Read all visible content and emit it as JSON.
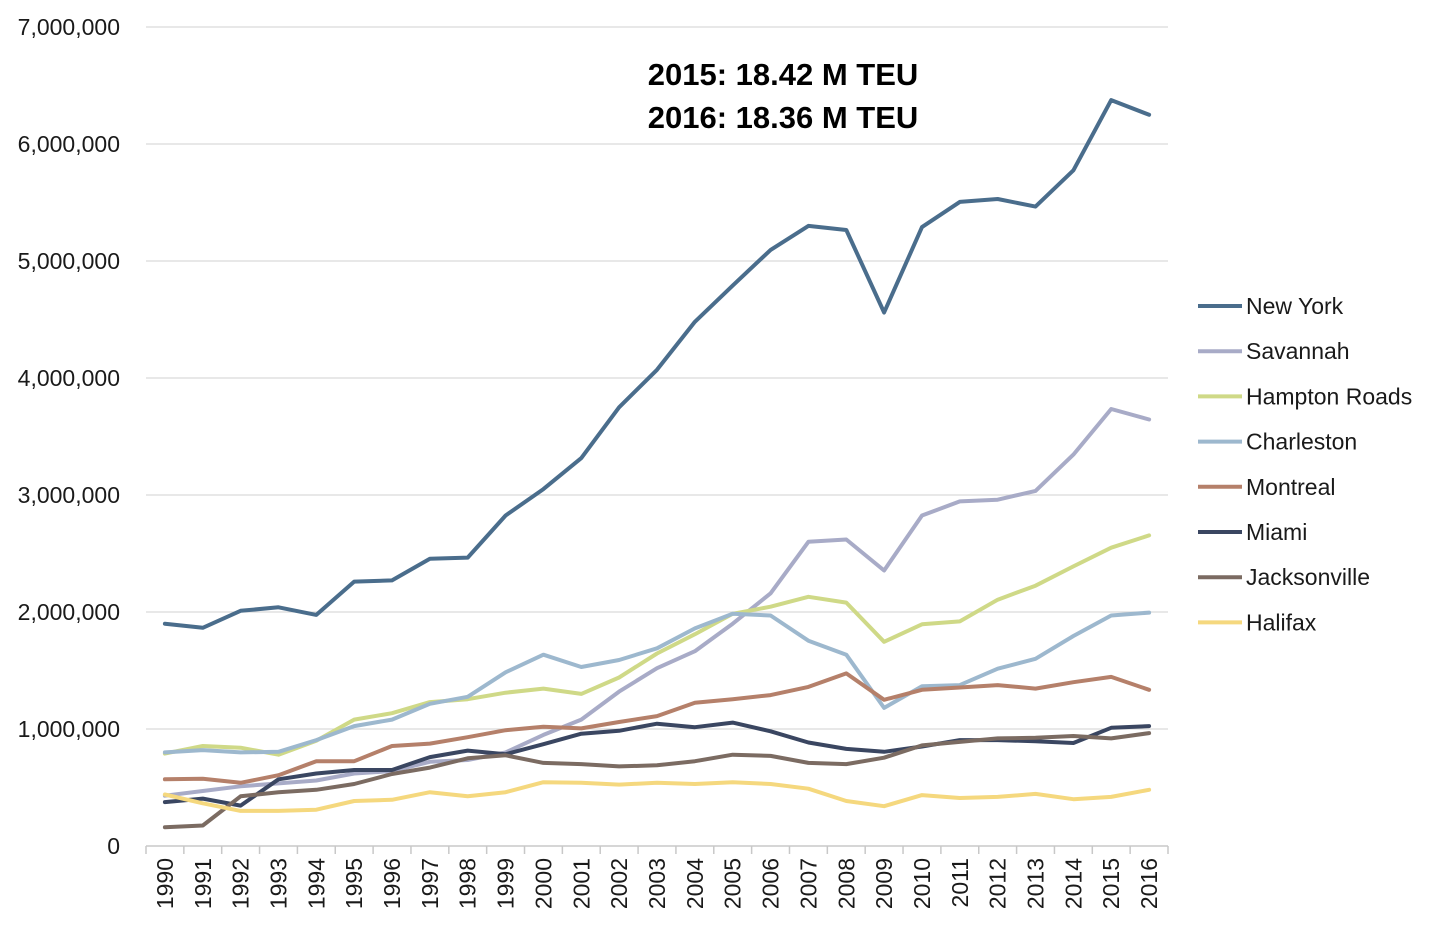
{
  "chart_data": {
    "type": "line",
    "title": "",
    "xlabel": "",
    "ylabel": "",
    "x": [
      "1990",
      "1991",
      "1992",
      "1993",
      "1994",
      "1995",
      "1996",
      "1997",
      "1998",
      "1999",
      "2000",
      "2001",
      "2002",
      "2003",
      "2004",
      "2005",
      "2006",
      "2007",
      "2008",
      "2009",
      "2010",
      "2011",
      "2012",
      "2013",
      "2014",
      "2015",
      "2016"
    ],
    "ylim": [
      0,
      7000000
    ],
    "y_ticks": [
      0,
      1000000,
      2000000,
      3000000,
      4000000,
      5000000,
      6000000,
      7000000
    ],
    "y_tick_labels": [
      "0",
      "1,000,000",
      "2,000,000",
      "3,000,000",
      "4,000,000",
      "5,000,000",
      "6,000,000",
      "7,000,000"
    ],
    "grid": "horizontal",
    "legend_position": "right",
    "annotations": [
      "2015: 18.42 M TEU",
      "2016: 18.36 M TEU"
    ],
    "series": [
      {
        "name": "New York",
        "color": "#4a6d8c",
        "values": [
          1900000,
          1865000,
          2010000,
          2040000,
          1975000,
          2260000,
          2270000,
          2455000,
          2465000,
          2825000,
          3050000,
          3315000,
          3750000,
          4070000,
          4480000,
          4790000,
          5095000,
          5300000,
          5265000,
          4560000,
          5290000,
          5505000,
          5530000,
          5465000,
          5775000,
          6375000,
          6250000
        ]
      },
      {
        "name": "Savannah",
        "color": "#a8abc7",
        "values": [
          430000,
          470000,
          510000,
          535000,
          560000,
          620000,
          640000,
          720000,
          735000,
          800000,
          950000,
          1080000,
          1320000,
          1520000,
          1665000,
          1900000,
          2160000,
          2600000,
          2620000,
          2355000,
          2825000,
          2945000,
          2960000,
          3035000,
          3345000,
          3735000,
          3645000
        ]
      },
      {
        "name": "Hampton Roads",
        "color": "#cfd987",
        "values": [
          790000,
          855000,
          840000,
          780000,
          900000,
          1080000,
          1135000,
          1230000,
          1255000,
          1310000,
          1345000,
          1300000,
          1440000,
          1645000,
          1810000,
          1985000,
          2045000,
          2130000,
          2080000,
          1745000,
          1895000,
          1920000,
          2105000,
          2225000,
          2390000,
          2550000,
          2655000
        ]
      },
      {
        "name": "Charleston",
        "color": "#9db8ce",
        "values": [
          800000,
          820000,
          800000,
          805000,
          905000,
          1025000,
          1080000,
          1215000,
          1275000,
          1485000,
          1635000,
          1530000,
          1590000,
          1690000,
          1860000,
          1985000,
          1970000,
          1755000,
          1635000,
          1180000,
          1365000,
          1375000,
          1515000,
          1600000,
          1795000,
          1970000,
          1995000
        ]
      },
      {
        "name": "Montreal",
        "color": "#b5806a",
        "values": [
          570000,
          575000,
          540000,
          605000,
          725000,
          725000,
          855000,
          875000,
          930000,
          990000,
          1020000,
          1005000,
          1060000,
          1110000,
          1225000,
          1255000,
          1290000,
          1360000,
          1475000,
          1250000,
          1335000,
          1355000,
          1375000,
          1345000,
          1400000,
          1445000,
          1335000
        ]
      },
      {
        "name": "Miami",
        "color": "#3a4661",
        "values": [
          375000,
          405000,
          345000,
          570000,
          620000,
          650000,
          650000,
          760000,
          815000,
          785000,
          870000,
          960000,
          985000,
          1045000,
          1015000,
          1055000,
          980000,
          885000,
          830000,
          805000,
          850000,
          905000,
          905000,
          895000,
          880000,
          1010000,
          1025000
        ]
      },
      {
        "name": "Jacksonville",
        "color": "#7b6b62",
        "values": [
          160000,
          175000,
          425000,
          460000,
          480000,
          530000,
          615000,
          670000,
          750000,
          775000,
          710000,
          700000,
          680000,
          690000,
          725000,
          780000,
          770000,
          710000,
          700000,
          755000,
          860000,
          890000,
          920000,
          925000,
          940000,
          920000,
          965000
        ]
      },
      {
        "name": "Halifax",
        "color": "#f5d87e",
        "values": [
          440000,
          365000,
          300000,
          300000,
          310000,
          385000,
          395000,
          460000,
          425000,
          460000,
          545000,
          540000,
          525000,
          540000,
          530000,
          545000,
          530000,
          490000,
          385000,
          340000,
          435000,
          410000,
          420000,
          445000,
          400000,
          420000,
          480000
        ]
      }
    ]
  }
}
